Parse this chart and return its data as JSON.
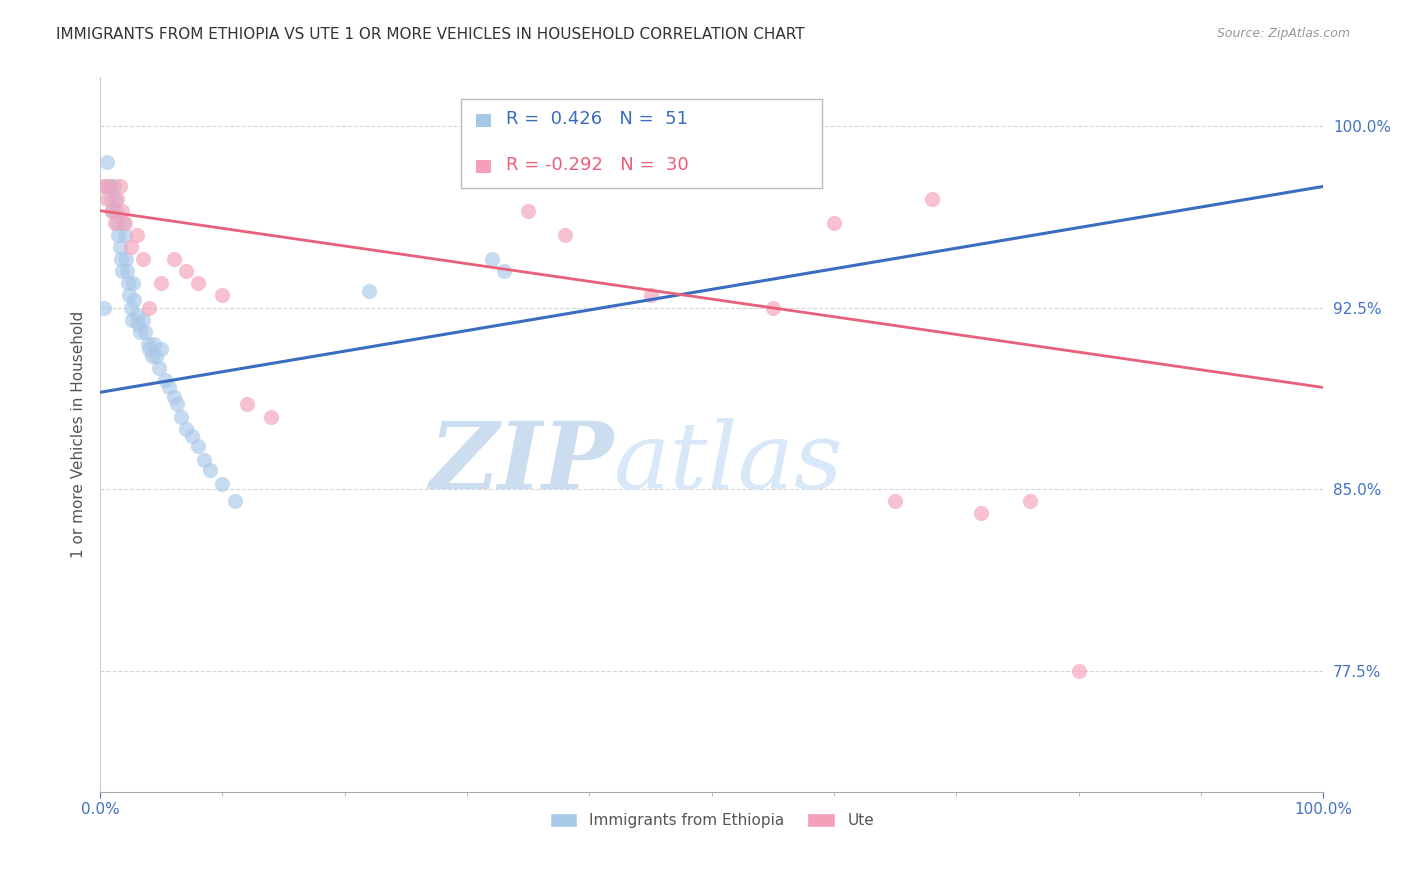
{
  "title": "IMMIGRANTS FROM ETHIOPIA VS UTE 1 OR MORE VEHICLES IN HOUSEHOLD CORRELATION CHART",
  "source": "Source: ZipAtlas.com",
  "ylabel": "1 or more Vehicles in Household",
  "xmin": 0.0,
  "xmax": 1.0,
  "ymin": 0.725,
  "ymax": 1.02,
  "yticks": [
    0.775,
    0.85,
    0.925,
    1.0
  ],
  "ytick_labels": [
    "77.5%",
    "85.0%",
    "92.5%",
    "100.0%"
  ],
  "xtick_labels": [
    "0.0%",
    "100.0%"
  ],
  "xticks": [
    0.0,
    1.0
  ],
  "blue_R": 0.426,
  "blue_N": 51,
  "pink_R": -0.292,
  "pink_N": 30,
  "blue_color": "#a8c8e8",
  "pink_color": "#f4a0b8",
  "blue_line_color": "#3a6dbf",
  "pink_line_color": "#e8607a",
  "legend_blue_fill": "#a8c8e8",
  "legend_pink_fill": "#f4a0b8",
  "watermark_zip_color": "#ccddf0",
  "watermark_atlas_color": "#d8e8f8",
  "title_color": "#333333",
  "axis_label_color": "#555555",
  "tick_label_color": "#4472c4",
  "grid_color": "#cccccc",
  "blue_scatter_x": [
    0.003,
    0.005,
    0.006,
    0.008,
    0.009,
    0.01,
    0.011,
    0.012,
    0.013,
    0.014,
    0.015,
    0.016,
    0.017,
    0.018,
    0.019,
    0.02,
    0.021,
    0.022,
    0.023,
    0.024,
    0.025,
    0.026,
    0.027,
    0.028,
    0.03,
    0.031,
    0.033,
    0.035,
    0.037,
    0.039,
    0.04,
    0.042,
    0.044,
    0.046,
    0.048,
    0.05,
    0.053,
    0.056,
    0.06,
    0.063,
    0.066,
    0.07,
    0.075,
    0.08,
    0.085,
    0.09,
    0.1,
    0.11,
    0.22,
    0.32,
    0.33
  ],
  "blue_scatter_y": [
    0.925,
    0.975,
    0.985,
    0.975,
    0.97,
    0.965,
    0.975,
    0.97,
    0.965,
    0.96,
    0.955,
    0.95,
    0.945,
    0.94,
    0.96,
    0.955,
    0.945,
    0.94,
    0.935,
    0.93,
    0.925,
    0.92,
    0.935,
    0.928,
    0.922,
    0.918,
    0.915,
    0.92,
    0.915,
    0.91,
    0.908,
    0.905,
    0.91,
    0.905,
    0.9,
    0.908,
    0.895,
    0.892,
    0.888,
    0.885,
    0.88,
    0.875,
    0.872,
    0.868,
    0.862,
    0.858,
    0.852,
    0.845,
    0.932,
    0.945,
    0.94
  ],
  "pink_scatter_x": [
    0.003,
    0.006,
    0.008,
    0.01,
    0.012,
    0.014,
    0.016,
    0.018,
    0.02,
    0.025,
    0.03,
    0.035,
    0.04,
    0.05,
    0.06,
    0.07,
    0.08,
    0.1,
    0.12,
    0.14,
    0.35,
    0.38,
    0.45,
    0.55,
    0.6,
    0.65,
    0.68,
    0.72,
    0.76,
    0.8
  ],
  "pink_scatter_y": [
    0.975,
    0.97,
    0.975,
    0.965,
    0.96,
    0.97,
    0.975,
    0.965,
    0.96,
    0.95,
    0.955,
    0.945,
    0.925,
    0.935,
    0.945,
    0.94,
    0.935,
    0.93,
    0.885,
    0.88,
    0.965,
    0.955,
    0.93,
    0.925,
    0.96,
    0.845,
    0.97,
    0.84,
    0.845,
    0.775
  ],
  "blue_trend_x0": 0.0,
  "blue_trend_x1": 1.0,
  "blue_trend_y0": 0.89,
  "blue_trend_y1": 0.975,
  "pink_trend_x0": 0.0,
  "pink_trend_x1": 1.0,
  "pink_trend_y0": 0.965,
  "pink_trend_y1": 0.892
}
